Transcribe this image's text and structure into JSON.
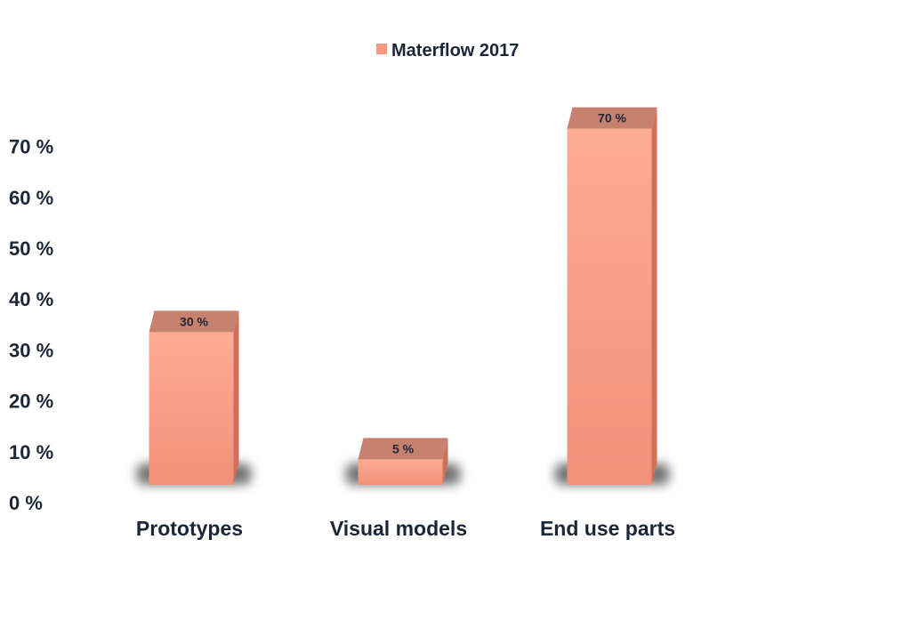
{
  "chart_data": {
    "type": "bar",
    "categories": [
      "Prototypes",
      "Visual models",
      "End use parts"
    ],
    "series": [
      {
        "name": "Materflow 2017",
        "values": [
          30,
          5,
          70
        ],
        "data_labels": [
          "30 %",
          "5 %",
          "70 %"
        ]
      }
    ],
    "yticks": [
      0,
      10,
      20,
      30,
      40,
      50,
      60,
      70
    ],
    "ytick_labels": [
      "0 %",
      "10 %",
      "20 %",
      "30 %",
      "40 %",
      "50 %",
      "60 %",
      "70 %"
    ],
    "ylim": [
      0,
      70
    ],
    "grid": false,
    "legend_position": "top-center",
    "style": "3d",
    "colors": {
      "bar_front_top": "#ffab92",
      "bar_front_bottom": "#f0917a",
      "bar_top": "#c7826f",
      "bar_side": "#cf7059",
      "legend_swatch": "#f49a80",
      "text": "#1b2636"
    }
  }
}
